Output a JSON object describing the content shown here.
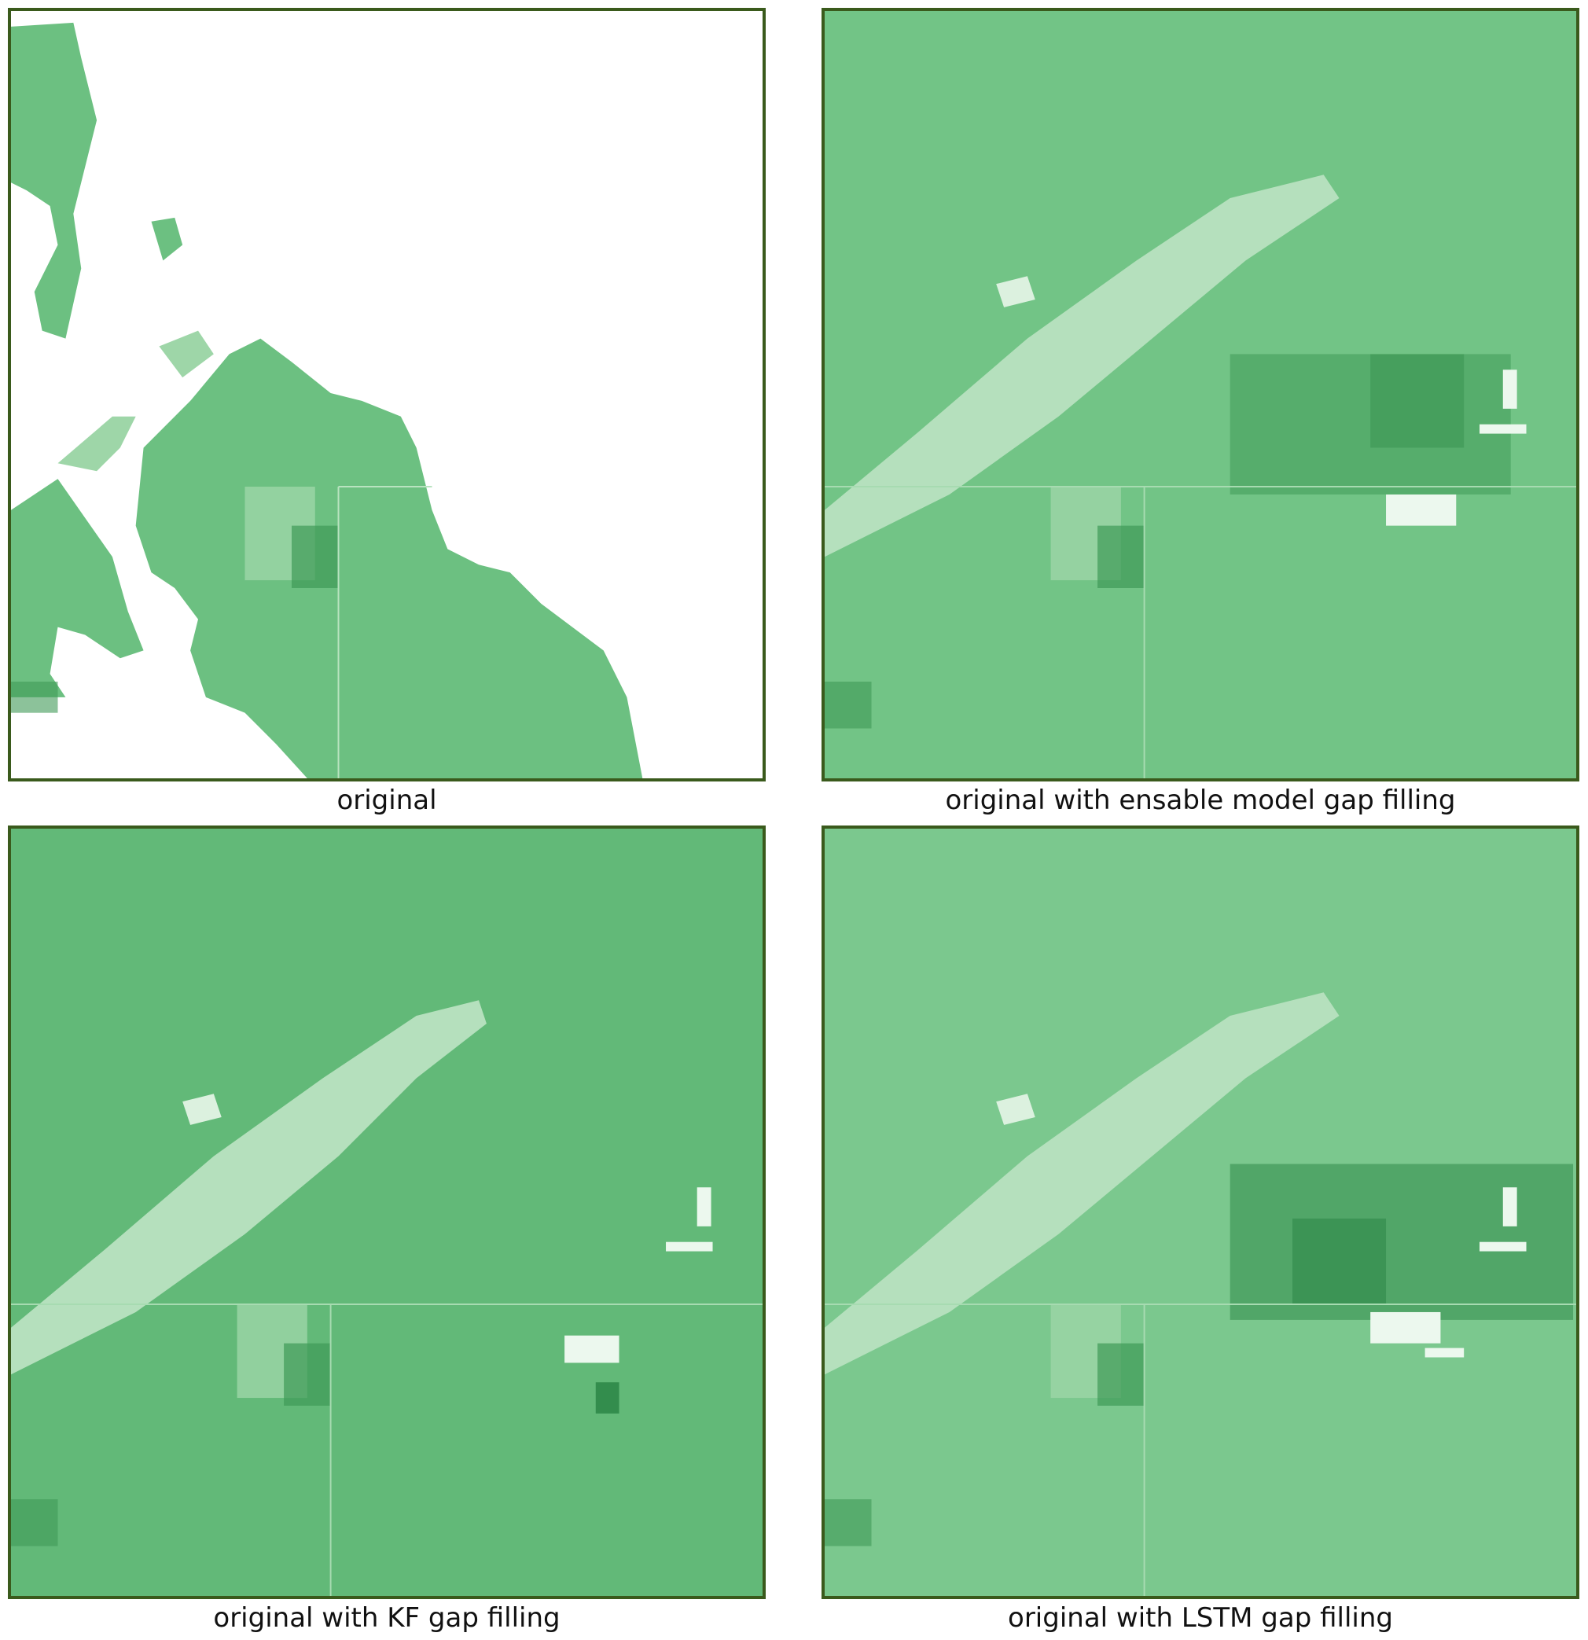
{
  "panels": [
    {
      "caption": "original"
    },
    {
      "caption": "original with ensable model gap filling"
    },
    {
      "caption": "original with KF gap filling"
    },
    {
      "caption": "original with LSTM gap filling"
    }
  ],
  "colors": {
    "frame": "#3a5a1c",
    "base_green": "#6cc081",
    "dark_green": "#3f9a57",
    "pale_green": "#b9e3c0",
    "gap": "#ffffff"
  }
}
